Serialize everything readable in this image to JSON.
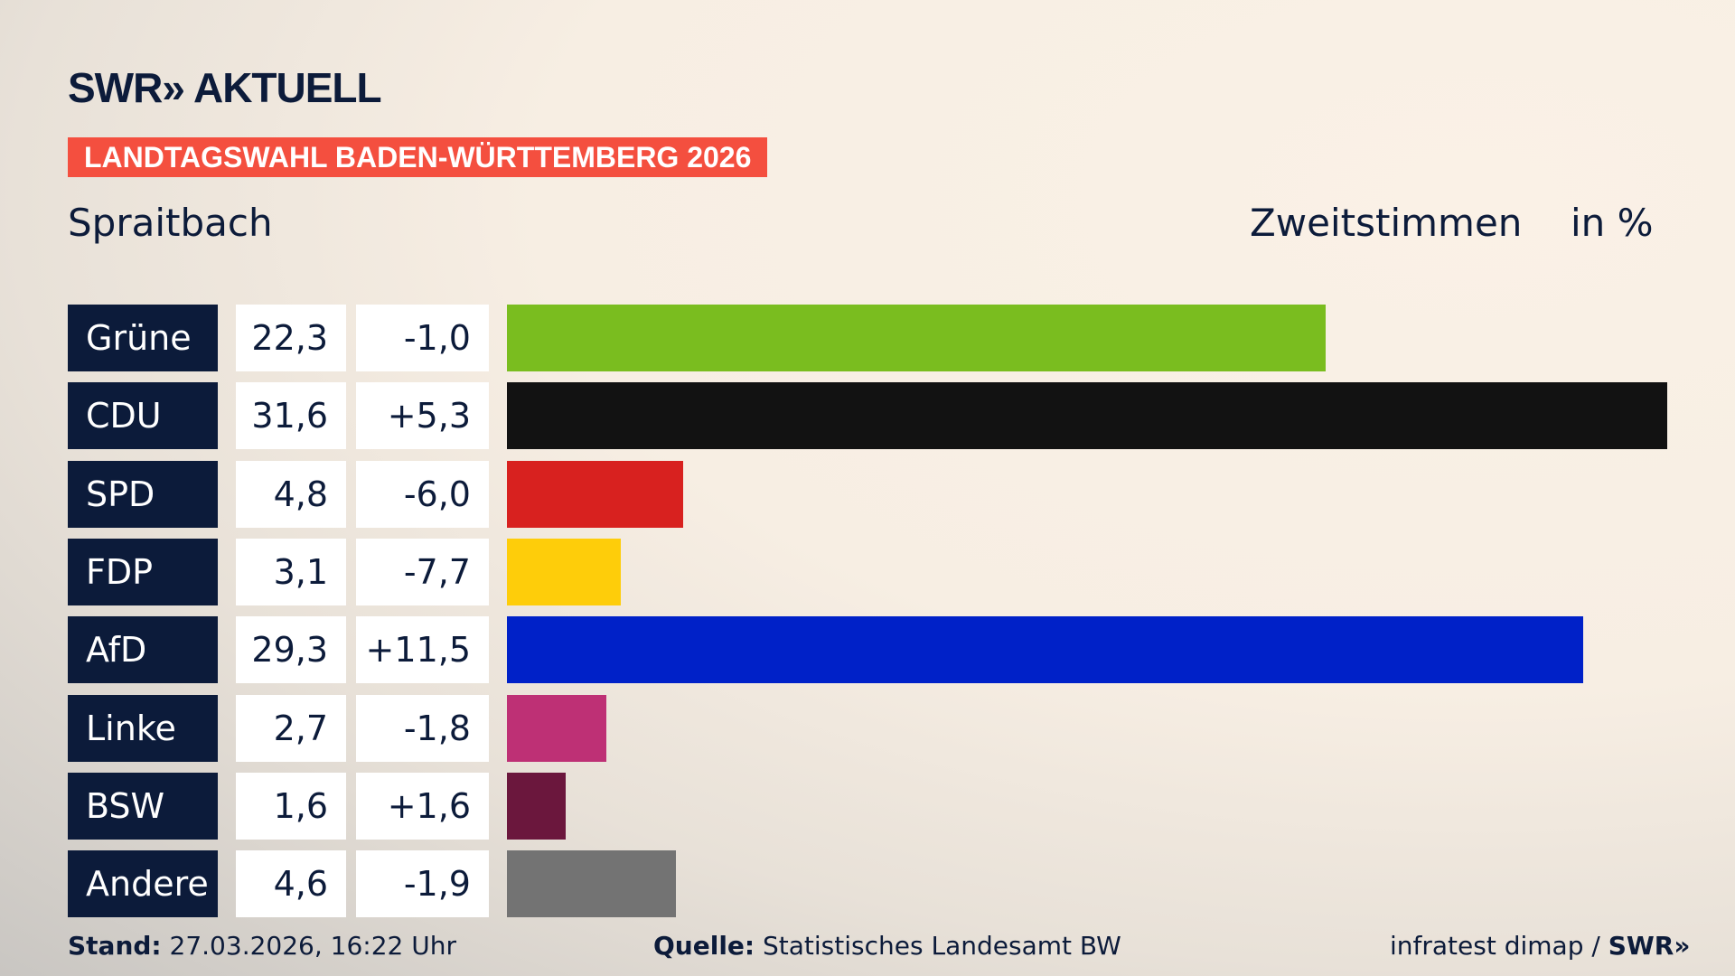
{
  "logo": "SWR» AKTUELL",
  "banner": "LANDTAGSWAHL BADEN-WÜRTTEMBERG 2026",
  "location": "Spraitbach",
  "vote_type": "Zweitstimmen",
  "unit": "in %",
  "chart_data": {
    "type": "bar",
    "orientation": "horizontal",
    "categories": [
      "Grüne",
      "CDU",
      "SPD",
      "FDP",
      "AfD",
      "Linke",
      "BSW",
      "Andere"
    ],
    "values": [
      22.3,
      31.6,
      4.8,
      3.1,
      29.3,
      2.7,
      1.6,
      4.6
    ],
    "value_labels": [
      "22,3",
      "31,6",
      "4,8",
      "3,1",
      "29,3",
      "2,7",
      "1,6",
      "4,6"
    ],
    "change_labels": [
      "-1,0",
      "+5,3",
      "-6,0",
      "-7,7",
      "+11,5",
      "-1,8",
      "+1,6",
      "-1,9"
    ],
    "changes": [
      -1.0,
      5.3,
      -6.0,
      -7.7,
      11.5,
      -1.8,
      1.6,
      -1.9
    ],
    "colors": [
      "#7abd1f",
      "#121212",
      "#d8211f",
      "#fecd0a",
      "#0021c8",
      "#be3075",
      "#6b173d",
      "#737373"
    ]
  },
  "footer": {
    "stand_label": "Stand:",
    "stand_value": "27.03.2026, 16:22 Uhr",
    "source_label": "Quelle:",
    "source_value": "Statistisches Landesamt BW",
    "credit": "infratest dimap / ",
    "credit_logo": "SWR»"
  }
}
